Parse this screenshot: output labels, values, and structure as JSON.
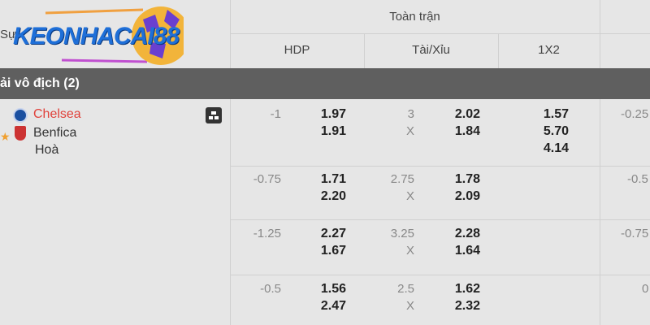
{
  "logo": {
    "text": "KEONHACAI88",
    "prefix": "Sự"
  },
  "header": {
    "group": "Toàn trận",
    "cols": [
      "HDP",
      "Tài/Xỉu",
      "1X2"
    ]
  },
  "league": {
    "name": "ải vô địch (2)"
  },
  "match": {
    "home": "Chelsea",
    "away": "Benfica",
    "draw": "Hoà",
    "home_color": "#e0413a"
  },
  "rows": [
    {
      "hdp": "-1",
      "hdp_home": "1.97",
      "hdp_away": "1.91",
      "ou": "3",
      "ou_x": "X",
      "ou_over": "2.02",
      "ou_under": "1.84",
      "x12": [
        "1.57",
        "5.70",
        "4.14"
      ],
      "next": "-0.25"
    },
    {
      "hdp": "-0.75",
      "hdp_home": "1.71",
      "hdp_away": "2.20",
      "ou": "2.75",
      "ou_x": "X",
      "ou_over": "1.78",
      "ou_under": "2.09",
      "next": "-0.5"
    },
    {
      "hdp": "-1.25",
      "hdp_home": "2.27",
      "hdp_away": "1.67",
      "ou": "3.25",
      "ou_x": "X",
      "ou_over": "2.28",
      "ou_under": "1.64",
      "next": "-0.75"
    },
    {
      "hdp": "-0.5",
      "hdp_home": "1.56",
      "hdp_away": "2.47",
      "ou": "2.5",
      "ou_x": "X",
      "ou_over": "1.62",
      "ou_under": "2.32",
      "next": "0"
    }
  ]
}
